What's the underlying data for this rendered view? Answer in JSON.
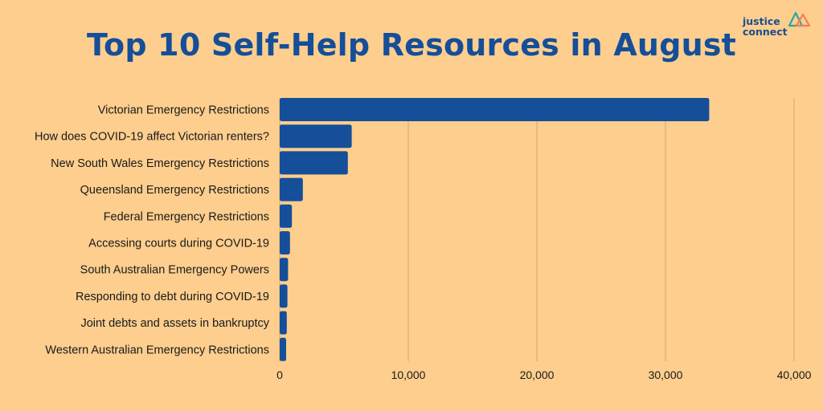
{
  "title": "Top 10 Self-Help Resources in August",
  "logo": {
    "line1": "justice",
    "line2": "connect"
  },
  "colors": {
    "background": "#FDCE8E",
    "bar": "#154E99",
    "title": "#154E99",
    "grid": "#C9A97A"
  },
  "chart_data": {
    "type": "bar",
    "orientation": "horizontal",
    "title": "Top 10 Self-Help Resources in August",
    "categories": [
      "Victorian Emergency Restrictions",
      "How does COVID-19 affect Victorian renters?",
      "New South Wales Emergency Restrictions",
      "Queensland Emergency Restrictions",
      "Federal Emergency Restrictions",
      "Accessing courts during COVID-19",
      "South Australian Emergency Powers",
      "Responding to debt during COVID-19",
      "Joint debts and assets in bankruptcy",
      "Western Australian Emergency Restrictions"
    ],
    "values": [
      33400,
      5600,
      5300,
      1800,
      950,
      800,
      650,
      600,
      550,
      500
    ],
    "xlim": [
      0,
      40000
    ],
    "xticks": [
      0,
      10000,
      20000,
      30000,
      40000
    ],
    "xtick_labels": [
      "0",
      "10,000",
      "20,000",
      "30,000",
      "40,000"
    ],
    "xlabel": "",
    "ylabel": "",
    "grid": "vertical",
    "legend": "none"
  }
}
